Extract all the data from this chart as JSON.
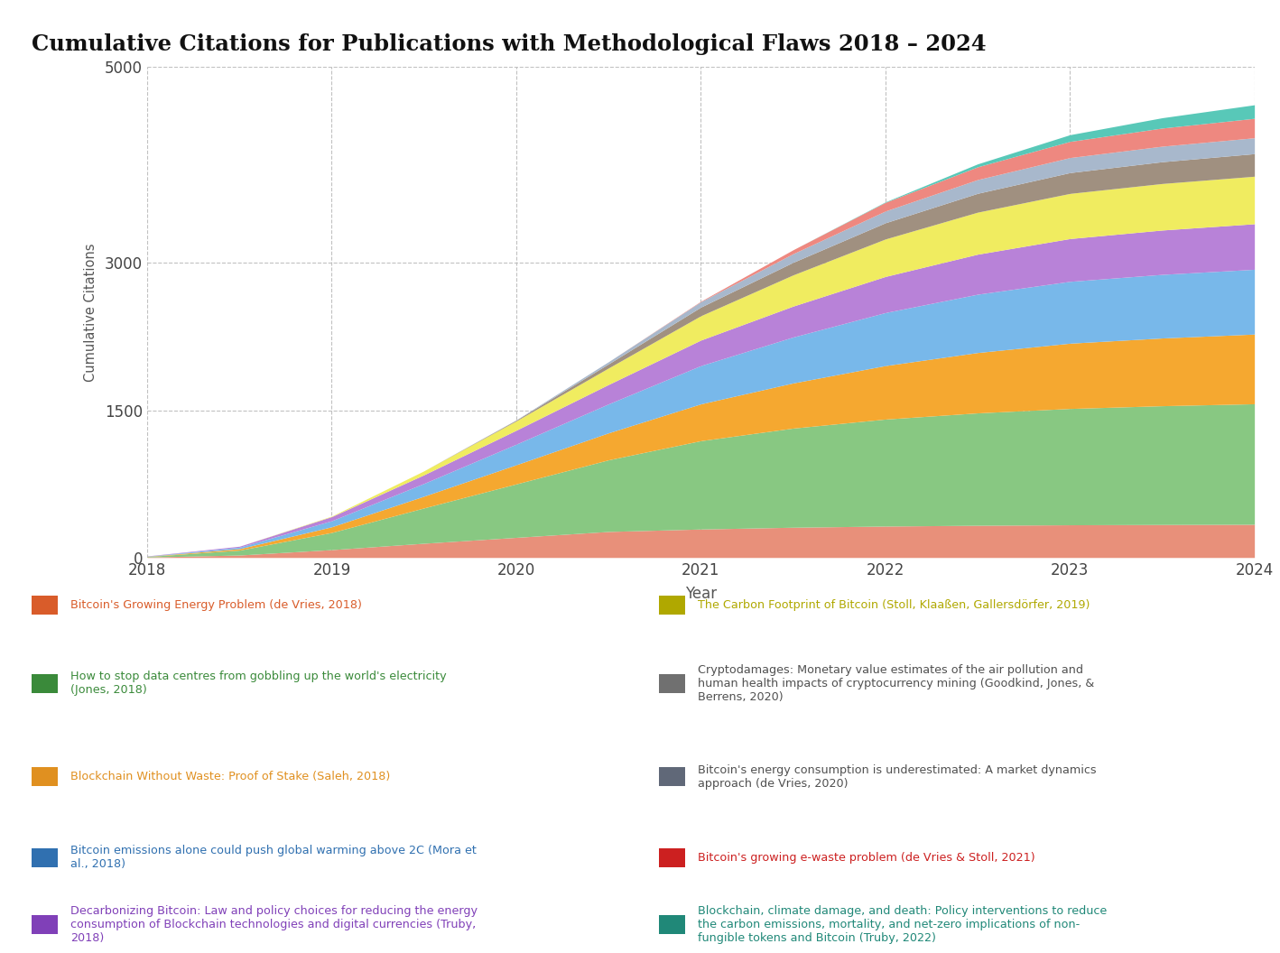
{
  "title": "Cumulative Citations for Publications with Methodological Flaws 2018 – 2024",
  "xlabel": "Year",
  "ylabel": "Cumulative Citations",
  "years": [
    2018,
    2018.5,
    2019,
    2019.5,
    2020,
    2020.5,
    2021,
    2021.5,
    2022,
    2022.5,
    2023,
    2023.5,
    2024
  ],
  "series_bottom_to_top": [
    {
      "label": "Bitcoin's Growing Energy Problem (de Vries, 2018)",
      "fill_color": "#E8907A",
      "legend_color": "#D95C2A",
      "text_color": "#D95C2A",
      "data": [
        5,
        25,
        80,
        145,
        205,
        265,
        290,
        308,
        320,
        328,
        333,
        336,
        338
      ]
    },
    {
      "label": "How to stop data centres from gobbling up the world's electricity\n(Jones, 2018)",
      "fill_color": "#88C882",
      "legend_color": "#3A8A3A",
      "text_color": "#3A8A3A",
      "data": [
        5,
        50,
        175,
        360,
        545,
        730,
        900,
        1010,
        1090,
        1145,
        1185,
        1210,
        1228
      ]
    },
    {
      "label": "Blockchain Without Waste: Proof of Stake (Saleh, 2018)",
      "fill_color": "#F5A830",
      "legend_color": "#E09020",
      "text_color": "#E09020",
      "data": [
        2,
        15,
        58,
        120,
        195,
        275,
        375,
        460,
        545,
        615,
        665,
        690,
        710
      ]
    },
    {
      "label": "Bitcoin emissions alone could push global warming above 2C (Mora et\nal., 2018)",
      "fill_color": "#78B8EA",
      "legend_color": "#3070B0",
      "text_color": "#3070B0",
      "data": [
        2,
        15,
        62,
        130,
        210,
        295,
        390,
        468,
        540,
        594,
        630,
        648,
        660
      ]
    },
    {
      "label": "Decarbonizing Bitcoin: Law and policy choices for reducing the energy\nconsumption of Blockchain technologies and digital currencies (Truby,\n2018)",
      "fill_color": "#B882D8",
      "legend_color": "#8040B8",
      "text_color": "#8040B8",
      "data": [
        2,
        10,
        42,
        88,
        142,
        198,
        260,
        315,
        368,
        408,
        436,
        452,
        464
      ]
    },
    {
      "label": "The Carbon Footprint of Bitcoin (Stoll, Klaaßen, Gallersdörfer, 2019)",
      "fill_color": "#F0EC60",
      "legend_color": "#B0A800",
      "text_color": "#B0A800",
      "data": [
        0,
        0,
        5,
        40,
        95,
        168,
        248,
        318,
        382,
        428,
        460,
        474,
        484
      ]
    },
    {
      "label": "Cryptodamages: Monetary value estimates of the air pollution and\nhuman health impacts of cryptocurrency mining (Goodkind, Jones, &\nBerrens, 2020)",
      "fill_color": "#A09080",
      "legend_color": "#707070",
      "text_color": "#505050",
      "data": [
        0,
        0,
        0,
        0,
        8,
        42,
        88,
        128,
        165,
        192,
        212,
        222,
        230
      ]
    },
    {
      "label": "Bitcoin's energy consumption is underestimated: A market dynamics\napproach (de Vries, 2020)",
      "fill_color": "#A8B8CC",
      "legend_color": "#606878",
      "text_color": "#505050",
      "data": [
        0,
        0,
        0,
        0,
        3,
        22,
        55,
        88,
        120,
        140,
        153,
        158,
        162
      ]
    },
    {
      "label": "Bitcoin's growing e-waste problem (de Vries & Stoll, 2021)",
      "fill_color": "#EE8880",
      "legend_color": "#CC2020",
      "text_color": "#CC2020",
      "data": [
        0,
        0,
        0,
        0,
        0,
        0,
        5,
        40,
        88,
        130,
        165,
        185,
        198
      ]
    },
    {
      "label": "Blockchain, climate damage, and death: Policy interventions to reduce\nthe carbon emissions, mortality, and net-zero implications of non-\nfungible tokens and Bitcoin (Truby, 2022)",
      "fill_color": "#58C8B8",
      "legend_color": "#208878",
      "text_color": "#208878",
      "data": [
        0,
        0,
        0,
        0,
        0,
        0,
        0,
        0,
        5,
        30,
        68,
        105,
        138
      ]
    }
  ],
  "ylim": [
    0,
    5000
  ],
  "yticks": [
    0,
    1500,
    3000,
    5000
  ],
  "xticks": [
    2018,
    2019,
    2020,
    2021,
    2022,
    2023,
    2024
  ],
  "background_color": "#FFFFFF"
}
